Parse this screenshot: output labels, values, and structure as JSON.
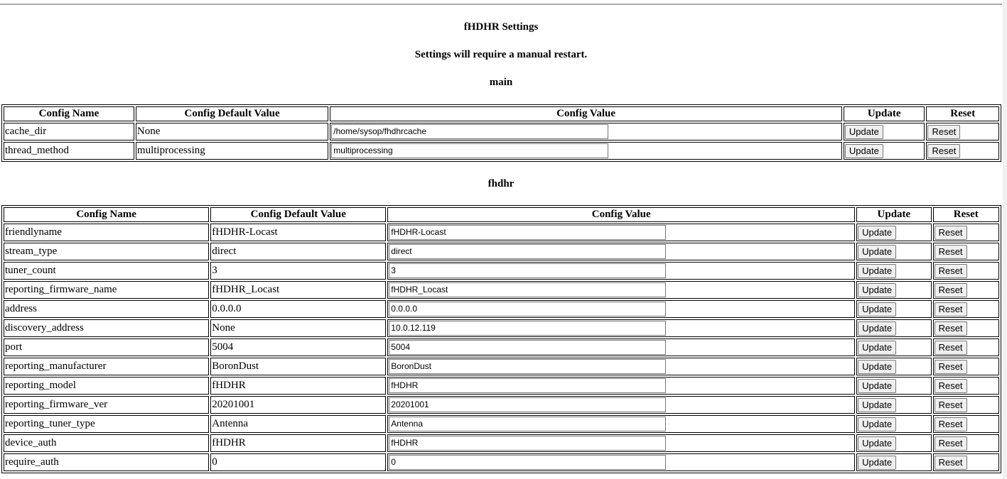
{
  "title": "fHDHR Settings",
  "notice": "Settings will require a manual restart.",
  "columns": [
    "Config Name",
    "Config Default Value",
    "Config Value",
    "Update",
    "Reset"
  ],
  "update_label": "Update",
  "reset_label": "Reset",
  "sections": [
    {
      "name": "main",
      "rows": [
        {
          "name": "cache_dir",
          "default": "None",
          "value": "/home/sysop/fhdhrcache"
        },
        {
          "name": "thread_method",
          "default": "multiprocessing",
          "value": "multiprocessing"
        }
      ]
    },
    {
      "name": "fhdhr",
      "rows": [
        {
          "name": "friendlyname",
          "default": "fHDHR-Locast",
          "value": "fHDHR-Locast"
        },
        {
          "name": "stream_type",
          "default": "direct",
          "value": "direct"
        },
        {
          "name": "tuner_count",
          "default": "3",
          "value": "3"
        },
        {
          "name": "reporting_firmware_name",
          "default": "fHDHR_Locast",
          "value": "fHDHR_Locast"
        },
        {
          "name": "address",
          "default": "0.0.0.0",
          "value": "0.0.0.0"
        },
        {
          "name": "discovery_address",
          "default": "None",
          "value": "10.0.12.119"
        },
        {
          "name": "port",
          "default": "5004",
          "value": "5004"
        },
        {
          "name": "reporting_manufacturer",
          "default": "BoronDust",
          "value": "BoronDust"
        },
        {
          "name": "reporting_model",
          "default": "fHDHR",
          "value": "fHDHR"
        },
        {
          "name": "reporting_firmware_ver",
          "default": "20201001",
          "value": "20201001"
        },
        {
          "name": "reporting_tuner_type",
          "default": "Antenna",
          "value": "Antenna"
        },
        {
          "name": "device_auth",
          "default": "fHDHR",
          "value": "fHDHR"
        },
        {
          "name": "require_auth",
          "default": "0",
          "value": "0"
        }
      ]
    }
  ]
}
